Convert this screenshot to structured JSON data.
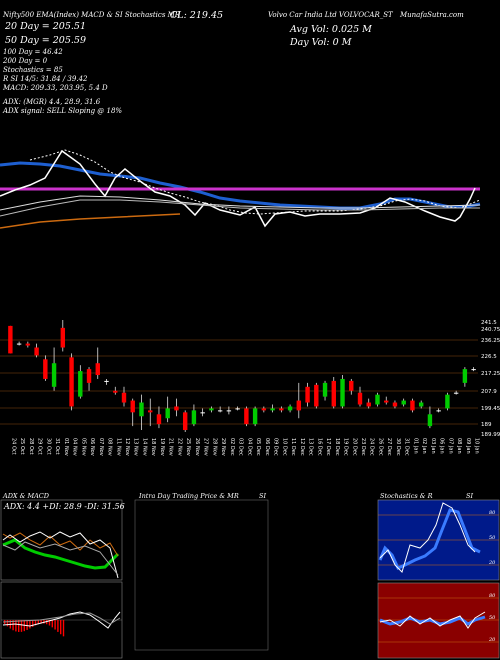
{
  "header": {
    "left_top": "Nifty500 EMA(Index) MACD & SI Stochastics MR",
    "cl": "CL: 219.45",
    "right_top": "Volvo Car India Ltd VOLVOCAR_ST",
    "right_top2": "MunafaSutra.com",
    "ema20": "20 Day = 205.51",
    "ema50": "50 Day = 205.59",
    "ema100": "100 Day = 46.42",
    "ema200": "200 Day = 0",
    "avg_vol": "Avg Vol: 0.025 M",
    "day_vol": "Day Vol: 0   M",
    "stoch": "Stochastics = 85",
    "rsi": "R         SI 14/5: 31.84 / 39.42",
    "macd": "MACD: 209.33, 203.95, 5.4   D",
    "adx": "ADX:                    (MGR) 4.4, 28.9, 31.6",
    "adx_signal": "ADX  signal: SELL  Sloping @ 18%"
  },
  "panels": {
    "adx_title": "ADX  & MACD",
    "adx_value": "ADX: 4.4  +DI: 28.9 -DI: 31.56",
    "intraday_title": "Intra  Day Trading Price  & MR",
    "intraday_si": "SI",
    "stoch_title": "Stochastics & R",
    "stoch_si": "SI",
    "stoch_labels": [
      "80",
      "50",
      "20"
    ],
    "rsi_labels": [
      "80",
      "50",
      "20"
    ]
  },
  "colors": {
    "up": "#00cc00",
    "down": "#ff0000",
    "ema_blue": "#1e5fd0",
    "magenta": "#cc33cc",
    "orange": "#cc6a10",
    "grid": "#8a4a10"
  },
  "chart_data": {
    "type": "candlestick",
    "price_levels": [
      "241.5",
      "240.75",
      "236.25",
      "226.5",
      "217.25",
      "207.9",
      "199.45",
      "189",
      "189.99"
    ],
    "x_labels": [
      "24 Oct",
      "25 Oct",
      "28 Oct",
      "29 Oct",
      "30 Oct",
      "31 Oct",
      "01 Nov",
      "04 Nov",
      "05 Nov",
      "06 Nov",
      "07 Nov",
      "08 Nov",
      "11 Nov",
      "12 Nov",
      "13 Nov",
      "14 Nov",
      "18 Nov",
      "19 Nov",
      "21 Nov",
      "22 Nov",
      "25 Nov",
      "26 Nov",
      "27 Nov",
      "28 Nov",
      "29 Nov",
      "02 Dec",
      "03 Dec",
      "04 Dec",
      "05 Dec",
      "06 Dec",
      "09 Dec",
      "10 Dec",
      "11 Dec",
      "12 Dec",
      "13 Dec",
      "16 Dec",
      "17 Dec",
      "18 Dec",
      "19 Dec",
      "20 Dec",
      "23 Dec",
      "24 Dec",
      "26 Dec",
      "27 Dec",
      "30 Dec",
      "31 Dec",
      "01 Jan",
      "02 Jan",
      "03 Jan",
      "06 Jan",
      "07 Jan",
      "08 Jan",
      "09 Jan",
      "10 Jan"
    ],
    "candles": [
      {
        "o": 241,
        "c": 227,
        "h": 241,
        "l": 227
      },
      {
        "o": 232,
        "c": 232,
        "h": 233,
        "l": 231
      },
      {
        "o": 232,
        "c": 231,
        "h": 233,
        "l": 230
      },
      {
        "o": 230,
        "c": 226,
        "h": 232,
        "l": 225
      },
      {
        "o": 224,
        "c": 214,
        "h": 226,
        "l": 213
      },
      {
        "o": 210,
        "c": 222,
        "h": 230,
        "l": 208
      },
      {
        "o": 240,
        "c": 230,
        "h": 244,
        "l": 228
      },
      {
        "o": 225,
        "c": 200,
        "h": 227,
        "l": 198
      },
      {
        "o": 205,
        "c": 218,
        "h": 221,
        "l": 204
      },
      {
        "o": 219,
        "c": 212,
        "h": 220,
        "l": 208
      },
      {
        "o": 222,
        "c": 216,
        "h": 230,
        "l": 214
      },
      {
        "o": 213,
        "c": 213,
        "h": 214,
        "l": 211
      },
      {
        "o": 208,
        "c": 207,
        "h": 210,
        "l": 206
      },
      {
        "o": 207,
        "c": 202,
        "h": 210,
        "l": 200
      },
      {
        "o": 203,
        "c": 197,
        "h": 204,
        "l": 190
      },
      {
        "o": 195,
        "c": 202,
        "h": 206,
        "l": 188
      },
      {
        "o": 198,
        "c": 197,
        "h": 204,
        "l": 190
      },
      {
        "o": 196,
        "c": 191,
        "h": 200,
        "l": 189
      },
      {
        "o": 194,
        "c": 199,
        "h": 205,
        "l": 192
      },
      {
        "o": 200,
        "c": 198,
        "h": 204,
        "l": 195
      },
      {
        "o": 197,
        "c": 188,
        "h": 198,
        "l": 187
      },
      {
        "o": 191,
        "c": 198,
        "h": 201,
        "l": 190
      },
      {
        "o": 197,
        "c": 197,
        "h": 199,
        "l": 195
      },
      {
        "o": 198,
        "c": 199,
        "h": 200,
        "l": 197
      },
      {
        "o": 198,
        "c": 198,
        "h": 200,
        "l": 197
      },
      {
        "o": 198,
        "c": 198,
        "h": 200,
        "l": 196
      },
      {
        "o": 199,
        "c": 199,
        "h": 200,
        "l": 198
      },
      {
        "o": 199,
        "c": 191,
        "h": 200,
        "l": 190
      },
      {
        "o": 191,
        "c": 199,
        "h": 200,
        "l": 190
      },
      {
        "o": 199,
        "c": 198,
        "h": 200,
        "l": 197
      },
      {
        "o": 198,
        "c": 199,
        "h": 201,
        "l": 197
      },
      {
        "o": 199,
        "c": 198,
        "h": 200,
        "l": 197
      },
      {
        "o": 198,
        "c": 200,
        "h": 201,
        "l": 197
      },
      {
        "o": 203,
        "c": 198,
        "h": 212,
        "l": 194
      },
      {
        "o": 210,
        "c": 202,
        "h": 212,
        "l": 200
      },
      {
        "o": 211,
        "c": 200,
        "h": 212,
        "l": 199
      },
      {
        "o": 205,
        "c": 212,
        "h": 213,
        "l": 203
      },
      {
        "o": 213,
        "c": 200,
        "h": 215,
        "l": 199
      },
      {
        "o": 200,
        "c": 214,
        "h": 216,
        "l": 199
      },
      {
        "o": 213,
        "c": 208,
        "h": 214,
        "l": 206
      },
      {
        "o": 207,
        "c": 201,
        "h": 210,
        "l": 200
      },
      {
        "o": 202,
        "c": 200,
        "h": 204,
        "l": 199
      },
      {
        "o": 201,
        "c": 206,
        "h": 207,
        "l": 200
      },
      {
        "o": 203,
        "c": 202,
        "h": 205,
        "l": 201
      },
      {
        "o": 202,
        "c": 200,
        "h": 203,
        "l": 199
      },
      {
        "o": 201,
        "c": 203,
        "h": 204,
        "l": 200
      },
      {
        "o": 203,
        "c": 198,
        "h": 204,
        "l": 197
      },
      {
        "o": 200,
        "c": 202,
        "h": 203,
        "l": 199
      },
      {
        "o": 190,
        "c": 196,
        "h": 200,
        "l": 189
      },
      {
        "o": 198,
        "c": 198,
        "h": 199,
        "l": 197
      },
      {
        "o": 199,
        "c": 206,
        "h": 207,
        "l": 198
      },
      {
        "o": 207,
        "c": 207,
        "h": 208,
        "l": 206
      },
      {
        "o": 212,
        "c": 219,
        "h": 220,
        "l": 210
      },
      {
        "o": 219,
        "c": 219,
        "h": 220,
        "l": 218
      }
    ],
    "ylim": [
      187,
      244
    ]
  }
}
